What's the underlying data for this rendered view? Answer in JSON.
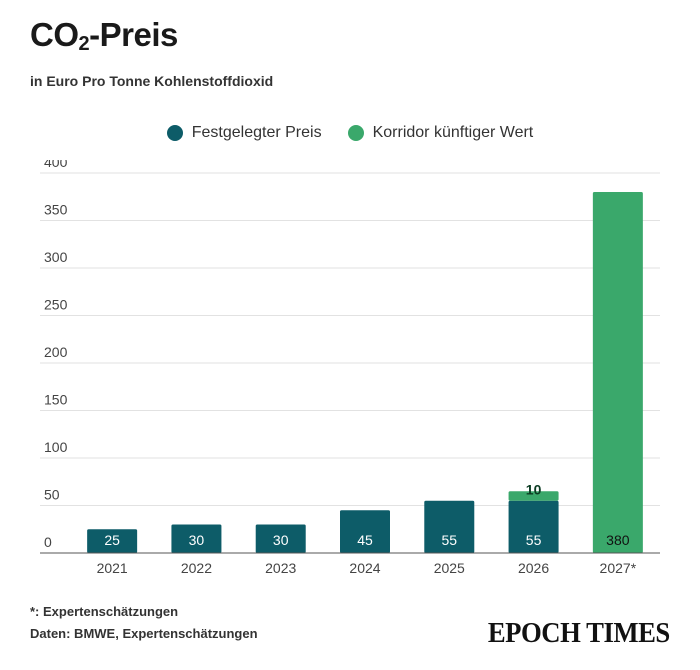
{
  "header": {
    "title_pre": "CO",
    "title_sub": "2",
    "title_post": "-Preis",
    "subtitle": "in Euro Pro Tonne Kohlenstoffdioxid"
  },
  "legend": [
    {
      "label": "Festgelegter Preis",
      "color": "#0d5c68"
    },
    {
      "label": "Korridor künftiger Wert",
      "color": "#3aa86b"
    }
  ],
  "chart_data": {
    "type": "bar",
    "stacked": true,
    "categories": [
      "2021",
      "2022",
      "2023",
      "2024",
      "2025",
      "2026",
      "2027*"
    ],
    "series": [
      {
        "name": "Festgelegter Preis",
        "color": "#0d5c68",
        "values": [
          25,
          30,
          30,
          45,
          55,
          55,
          0
        ]
      },
      {
        "name": "Korridor künftiger Wert",
        "color": "#3aa86b",
        "values": [
          0,
          0,
          0,
          0,
          0,
          10,
          380
        ]
      }
    ],
    "data_labels": [
      {
        "category": "2021",
        "text": "25"
      },
      {
        "category": "2022",
        "text": "30"
      },
      {
        "category": "2023",
        "text": "30"
      },
      {
        "category": "2024",
        "text": "45"
      },
      {
        "category": "2025",
        "text": "55"
      },
      {
        "category": "2026",
        "text": "55"
      },
      {
        "category": "2026",
        "text": "10"
      },
      {
        "category": "2027*",
        "text": "380"
      }
    ],
    "yticks": [
      0,
      50,
      100,
      150,
      200,
      250,
      300,
      350,
      400
    ],
    "ylim": [
      0,
      400
    ],
    "grid": true
  },
  "footer": {
    "footnote": "*: Expertenschätzungen",
    "source": "Daten: BMWE, Expertenschätzungen",
    "logo": "EPOCH TIMES"
  }
}
